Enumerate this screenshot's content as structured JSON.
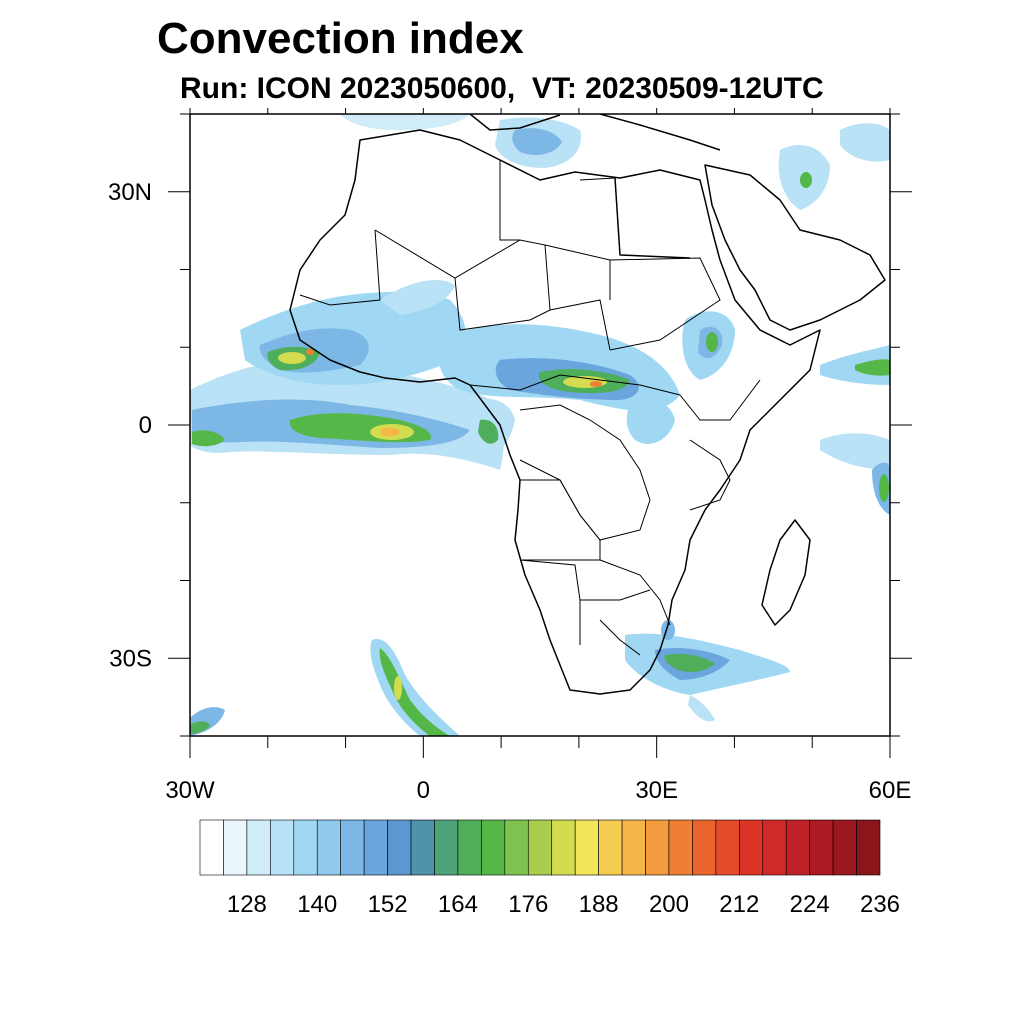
{
  "title": "Convection index",
  "subtitle": "Run: ICON 2023050600,  VT: 20230509-12UTC",
  "map": {
    "extent": {
      "lon_min": -30,
      "lon_max": 60,
      "lat_min": -40,
      "lat_max": 40
    },
    "lat_ticks": [
      {
        "lat": 30,
        "label": "30N"
      },
      {
        "lat": 0,
        "label": "0"
      },
      {
        "lat": -30,
        "label": "30S"
      }
    ],
    "lon_ticks": [
      {
        "lon": -30,
        "label": "30W"
      },
      {
        "lon": 0,
        "label": "0"
      },
      {
        "lon": 30,
        "label": "30E"
      },
      {
        "lon": 60,
        "label": "60E"
      }
    ]
  },
  "colorbar": {
    "colors": [
      "#ffffff",
      "#eaf6fc",
      "#d0ecf9",
      "#b9e2f6",
      "#a0d8f3",
      "#8fc9ee",
      "#7cb7e6",
      "#6aa6dd",
      "#5b97d1",
      "#4f93a8",
      "#4ea37b",
      "#4fae5a",
      "#55b748",
      "#7fc24f",
      "#a9cd4f",
      "#d3db4f",
      "#f2e55a",
      "#f6cd50",
      "#f6b548",
      "#f39b3e",
      "#ef7f33",
      "#ea642d",
      "#e44b2a",
      "#dc3528",
      "#d02a28",
      "#c12227",
      "#ad1b22",
      "#9b181e",
      "#8a161c"
    ],
    "labels": [
      "128",
      "140",
      "152",
      "164",
      "176",
      "188",
      "200",
      "212",
      "224",
      "236"
    ]
  },
  "chart_data": {
    "type": "heatmap",
    "variable": "Convection index",
    "run": "ICON 2023050600",
    "valid_time": "20230509-12UTC",
    "lon_range": [
      -30,
      60
    ],
    "lat_range": [
      -40,
      40
    ],
    "levels": [
      124,
      128,
      132,
      136,
      140,
      144,
      148,
      152,
      156,
      160,
      164,
      168,
      172,
      176,
      180,
      184,
      188,
      192,
      196,
      200,
      204,
      208,
      212,
      216,
      220,
      224,
      228,
      232,
      236,
      240
    ],
    "regions": [
      {
        "lon": -18,
        "lat": 7,
        "value": 180
      },
      {
        "lon": -13,
        "lat": 1,
        "value": 168
      },
      {
        "lon": -6,
        "lat": 0,
        "value": 186
      },
      {
        "lon": 23,
        "lat": 5,
        "value": 192
      },
      {
        "lon": -3,
        "lat": -33,
        "value": 176
      },
      {
        "lon": 30,
        "lat": -31,
        "value": 172
      },
      {
        "lon": 59,
        "lat": -8,
        "value": 168
      }
    ]
  }
}
